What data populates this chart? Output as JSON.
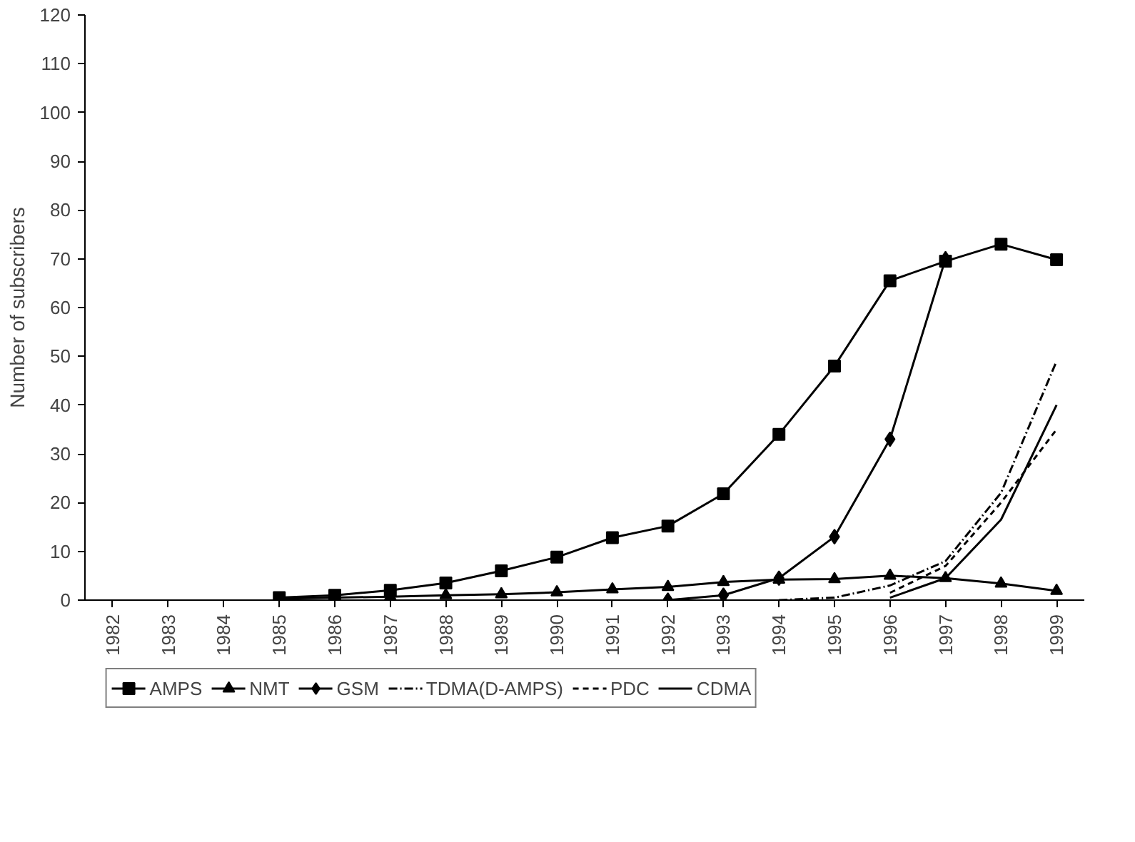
{
  "chart_data": {
    "type": "line",
    "ylabel": "Number of subscribers",
    "categories": [
      "1982",
      "1983",
      "1984",
      "1985",
      "1986",
      "1987",
      "1988",
      "1989",
      "1990",
      "1991",
      "1992",
      "1993",
      "1994",
      "1995",
      "1996",
      "1997",
      "1998",
      "1999"
    ],
    "ylim": [
      0,
      120
    ],
    "yticks": [
      0,
      10,
      20,
      30,
      40,
      50,
      60,
      70,
      80,
      90,
      100,
      110,
      120
    ],
    "grid": false,
    "legend": "bottom",
    "series": [
      {
        "name": "AMPS",
        "color": "#000000",
        "marker": "square",
        "line_style": "solid",
        "values": [
          null,
          null,
          null,
          0.5,
          1,
          2,
          3.5,
          6,
          8.8,
          12.8,
          15.2,
          21.8,
          34,
          48,
          65.5,
          69.5,
          73,
          69.8
        ]
      },
      {
        "name": "NMT",
        "color": "#000000",
        "marker": "triangle",
        "line_style": "solid",
        "values": [
          null,
          null,
          null,
          0.3,
          0.5,
          0.7,
          1,
          1.2,
          1.6,
          2.2,
          2.7,
          3.7,
          4.2,
          4.3,
          5,
          4.5,
          3.4,
          1.9
        ]
      },
      {
        "name": "GSM",
        "color": "#000000",
        "marker": "diamond",
        "line_style": "solid",
        "values": [
          null,
          null,
          null,
          null,
          null,
          null,
          null,
          null,
          null,
          null,
          0,
          1,
          4.5,
          13,
          33,
          70,
          null,
          null
        ]
      },
      {
        "name": "TDMA(D-AMPS)",
        "color": "#000000",
        "marker": "none",
        "line_style": "dashdot",
        "values": [
          null,
          null,
          null,
          null,
          null,
          null,
          null,
          null,
          null,
          null,
          null,
          null,
          0,
          0.5,
          3,
          8,
          22,
          49
        ]
      },
      {
        "name": "PDC",
        "color": "#000000",
        "marker": "none",
        "line_style": "dashed",
        "values": [
          null,
          null,
          null,
          null,
          null,
          null,
          null,
          null,
          null,
          null,
          null,
          null,
          null,
          null,
          1.5,
          7,
          20,
          35
        ]
      },
      {
        "name": "CDMA",
        "color": "#000000",
        "marker": "none",
        "line_style": "solid",
        "values": [
          null,
          null,
          null,
          null,
          null,
          null,
          null,
          null,
          null,
          null,
          null,
          null,
          null,
          null,
          0.5,
          4.5,
          16.5,
          40
        ]
      }
    ]
  }
}
